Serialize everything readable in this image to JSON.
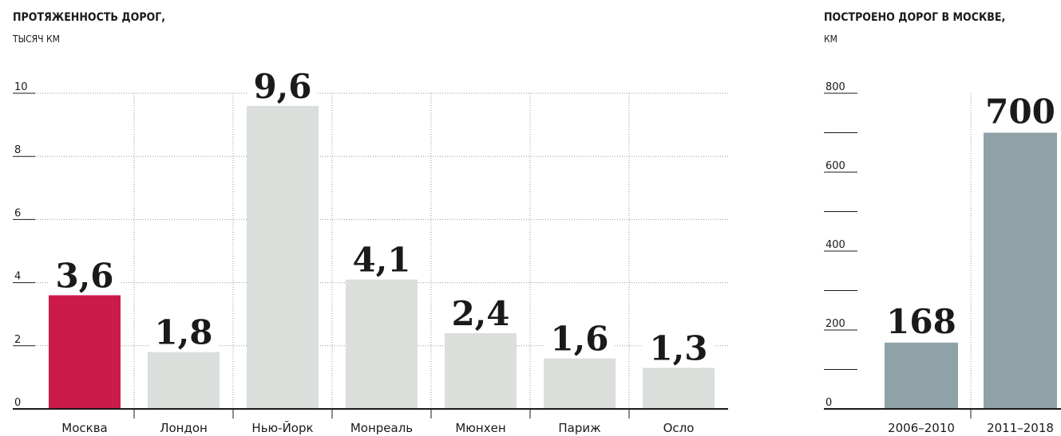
{
  "chart_data": [
    {
      "type": "bar",
      "title": "ПРОТЯЖЕННОСТЬ ДОРОГ,",
      "subtitle": "ТЫСЯЧ КМ",
      "categories": [
        "Москва",
        "Лондон",
        "Нью-Йорк",
        "Монреаль",
        "Мюнхен",
        "Париж",
        "Осло"
      ],
      "values": [
        3.6,
        1.8,
        9.6,
        4.1,
        2.4,
        1.6,
        1.3
      ],
      "value_labels": [
        "3,6",
        "1,8",
        "9,6",
        "4,1",
        "2,4",
        "1,6",
        "1,3"
      ],
      "highlight_index": 0,
      "ylim": [
        0,
        10
      ],
      "yticks": [
        "0",
        "2",
        "4",
        "6",
        "8",
        "10"
      ],
      "grid": true,
      "colors": {
        "highlight": "#cc1a4a",
        "bar": "#dadfdc"
      }
    },
    {
      "type": "bar",
      "title": "ПОСТРОЕНО ДОРОГ В МОСКВЕ,",
      "subtitle": "КМ",
      "categories": [
        "2006–2010",
        "2011–2018"
      ],
      "values": [
        168,
        700
      ],
      "value_labels": [
        "168",
        "700"
      ],
      "ylim": [
        0,
        800
      ],
      "yticks": [
        "0",
        "200",
        "400",
        "600",
        "800"
      ],
      "grid": false,
      "colors": {
        "bar": "#8fa2a8"
      }
    }
  ]
}
